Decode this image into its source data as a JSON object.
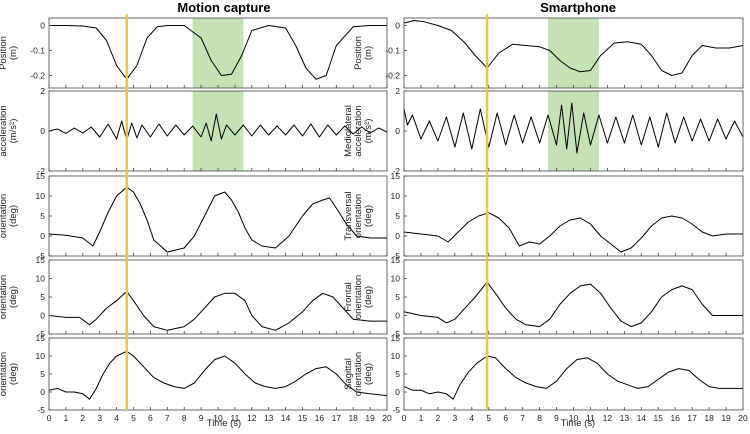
{
  "figure": {
    "titles": [
      "Motion capture",
      "Smartphone"
    ],
    "x_label": "Time (s)",
    "x_ticks": [
      0,
      1,
      2,
      3,
      4,
      5,
      6,
      7,
      8,
      9,
      10,
      11,
      12,
      13,
      14,
      15,
      16,
      17,
      18,
      19,
      20
    ],
    "marker_color": "#f7c435",
    "shade_color": "#c4e2b4",
    "rows": [
      {
        "label_lines": [
          "Position",
          "(m)"
        ],
        "ylim": [
          -0.25,
          0.03
        ],
        "yticks": [
          "0",
          "-0.1",
          "-0.2"
        ],
        "ytick_vals": [
          0,
          -0.1,
          -0.2
        ]
      },
      {
        "label_lines": [
          "Mediolateral",
          "acceleration",
          "(m/s²)"
        ],
        "ylim": [
          -2,
          2
        ],
        "yticks": [
          "2",
          "0",
          "-2"
        ],
        "ytick_vals": [
          2,
          0,
          -2
        ]
      },
      {
        "label_lines": [
          "Transversal",
          "orientation",
          "(deg)"
        ],
        "ylim": [
          -5,
          15
        ],
        "yticks": [
          "15",
          "10",
          "5",
          "0",
          "-5"
        ],
        "ytick_vals": [
          15,
          10,
          5,
          0,
          -5
        ]
      },
      {
        "label_lines": [
          "Frontal",
          "orientation",
          "(deg)"
        ],
        "ylim": [
          -5,
          15
        ],
        "yticks": [
          "15",
          "10",
          "5",
          "0",
          "-5"
        ],
        "ytick_vals": [
          15,
          10,
          5,
          0,
          -5
        ]
      },
      {
        "label_lines": [
          "Sagittal",
          "orientation",
          "(deg)"
        ],
        "ylim": [
          -5,
          15
        ],
        "yticks": [
          "15",
          "10",
          "5",
          "0",
          "-5"
        ],
        "ytick_vals": [
          15,
          10,
          5,
          0,
          -5
        ]
      }
    ]
  },
  "chart_data": [
    {
      "type": "line",
      "title": "Motion capture",
      "xlabel": "Time (s)",
      "xlim": [
        0,
        20
      ],
      "marker_x": 4.6,
      "shaded_x_range": [
        8.5,
        11.5
      ],
      "series": [
        {
          "ylabel": "Position (m)",
          "ylim": [
            -0.25,
            0.03
          ],
          "x": [
            0,
            1,
            2,
            2.8,
            3.4,
            4,
            4.6,
            5.2,
            5.8,
            6.4,
            7,
            8,
            9,
            9.6,
            10.2,
            10.8,
            11.4,
            12,
            13,
            14,
            14.6,
            15.2,
            15.8,
            16.4,
            17,
            18,
            19,
            20
          ],
          "values": [
            0,
            0,
            -0.002,
            -0.01,
            -0.06,
            -0.16,
            -0.215,
            -0.16,
            -0.05,
            -0.005,
            0,
            0,
            -0.05,
            -0.14,
            -0.2,
            -0.195,
            -0.12,
            -0.02,
            0,
            -0.01,
            -0.08,
            -0.17,
            -0.215,
            -0.2,
            -0.08,
            -0.005,
            0,
            0
          ]
        },
        {
          "ylabel": "Mediolateral acceleration (m/s²)",
          "ylim": [
            -2,
            2
          ],
          "x": [
            0,
            0.5,
            1,
            1.5,
            2,
            2.5,
            3,
            3.5,
            4,
            4.3,
            4.6,
            4.9,
            5.2,
            5.5,
            6,
            6.5,
            7,
            7.5,
            8,
            8.5,
            9,
            9.3,
            9.6,
            9.9,
            10.2,
            10.5,
            11,
            11.5,
            12,
            12.5,
            13,
            13.5,
            14,
            14.5,
            15,
            15.5,
            16,
            16.5,
            17,
            17.5,
            18,
            18.5,
            19,
            19.5,
            20
          ],
          "values": [
            0,
            0.1,
            -0.12,
            0.15,
            -0.1,
            0.2,
            -0.3,
            0.35,
            -0.4,
            0.5,
            -0.45,
            0.4,
            -0.35,
            0.3,
            -0.3,
            0.35,
            -0.25,
            0.3,
            -0.2,
            0.25,
            -0.3,
            0.4,
            -0.5,
            0.85,
            -0.4,
            0.3,
            -0.2,
            0.3,
            -0.25,
            0.3,
            -0.2,
            0.25,
            -0.2,
            0.3,
            -0.25,
            0.35,
            -0.3,
            0.3,
            -0.2,
            0.25,
            -0.15,
            0.2,
            -0.1,
            0.15,
            -0.05
          ]
        },
        {
          "ylabel": "Transversal orientation (deg)",
          "ylim": [
            -5,
            15
          ],
          "x": [
            0,
            1,
            2,
            2.6,
            3,
            3.5,
            4,
            4.6,
            5,
            5.4,
            5.8,
            6.2,
            7,
            8,
            8.6,
            9.2,
            9.8,
            10.4,
            10.8,
            11.2,
            11.6,
            12,
            12.6,
            13.4,
            14.2,
            15,
            15.6,
            16.2,
            16.6,
            17,
            17.6,
            18.2,
            19,
            20
          ],
          "values": [
            0.5,
            0.2,
            -0.5,
            -2.5,
            1,
            6,
            10,
            12.2,
            11,
            8,
            4,
            -1,
            -4,
            -3,
            0,
            5,
            10,
            11,
            9,
            6,
            2,
            -1,
            -2.5,
            -3,
            0,
            5,
            8,
            9,
            9.5,
            7,
            3,
            0,
            -0.5,
            -0.5
          ]
        },
        {
          "ylabel": "Frontal orientation (deg)",
          "ylim": [
            -5,
            15
          ],
          "x": [
            0,
            1,
            1.8,
            2.4,
            2.8,
            3.4,
            4,
            4.6,
            5,
            5.6,
            6.2,
            7,
            8,
            8.6,
            9.2,
            9.8,
            10.4,
            11,
            11.6,
            12,
            12.6,
            13.4,
            14.2,
            15,
            15.6,
            16.2,
            16.8,
            17.4,
            18,
            19,
            20
          ],
          "values": [
            0,
            -0.5,
            -0.5,
            -2.5,
            -1,
            2,
            4,
            6.5,
            4,
            0,
            -3,
            -4,
            -3,
            -1,
            2,
            5,
            6,
            6,
            4,
            0,
            -3,
            -4,
            -2,
            1,
            4,
            6,
            5,
            2,
            -1,
            -1.5,
            -1.5
          ]
        },
        {
          "ylabel": "Sagittal orientation (deg)",
          "ylim": [
            -5,
            15
          ],
          "x": [
            0,
            0.5,
            1,
            1.5,
            2,
            2.4,
            2.8,
            3.2,
            3.6,
            4,
            4.6,
            5,
            5.6,
            6.2,
            6.8,
            7.4,
            8,
            8.6,
            9.2,
            9.8,
            10.4,
            11,
            11.6,
            12.2,
            12.8,
            13.4,
            14,
            14.6,
            15.2,
            15.8,
            16.4,
            17,
            17.6,
            18.2,
            19,
            20
          ],
          "values": [
            0.5,
            1,
            0,
            0,
            -0.5,
            -2,
            1,
            5,
            8,
            10,
            11.3,
            10,
            7,
            4,
            2.5,
            1.5,
            1,
            2.5,
            6,
            9,
            10,
            8,
            5,
            2.5,
            1.5,
            1,
            1.5,
            3,
            5,
            6.5,
            7,
            5,
            2,
            0,
            -0.5,
            -1
          ]
        }
      ]
    },
    {
      "type": "line",
      "title": "Smartphone",
      "xlabel": "Time (s)",
      "xlim": [
        0,
        20
      ],
      "marker_x": 4.9,
      "shaded_x_range": [
        8.5,
        11.5
      ],
      "series": [
        {
          "ylabel": "Position (m)",
          "ylim": [
            -0.25,
            0.03
          ],
          "x": [
            0,
            0.6,
            1.2,
            2,
            2.8,
            3.6,
            4.2,
            4.9,
            5.6,
            6.4,
            7.2,
            8,
            8.6,
            9.2,
            9.8,
            10.4,
            11,
            11.6,
            12.4,
            13.2,
            14,
            14.6,
            15.2,
            15.8,
            16.4,
            17,
            17.6,
            18.4,
            19.2,
            20
          ],
          "values": [
            0.01,
            0.02,
            0.015,
            0,
            -0.02,
            -0.07,
            -0.12,
            -0.17,
            -0.11,
            -0.075,
            -0.08,
            -0.085,
            -0.1,
            -0.14,
            -0.17,
            -0.185,
            -0.18,
            -0.12,
            -0.07,
            -0.065,
            -0.075,
            -0.12,
            -0.18,
            -0.2,
            -0.19,
            -0.12,
            -0.08,
            -0.09,
            -0.09,
            -0.08
          ]
        },
        {
          "ylabel": "Mediolateral acceleration (m/s²)",
          "ylim": [
            -2,
            2
          ],
          "x": [
            0,
            0.2,
            0.5,
            1,
            1.5,
            2,
            2.5,
            3,
            3.5,
            4,
            4.5,
            5,
            5.5,
            6,
            6.5,
            7,
            7.5,
            8,
            8.5,
            9,
            9.3,
            9.6,
            9.9,
            10.2,
            10.6,
            11,
            11.5,
            12,
            12.5,
            13,
            13.5,
            14,
            14.5,
            15,
            15.5,
            16,
            16.5,
            17,
            17.5,
            18,
            18.5,
            19,
            19.5,
            20
          ],
          "values": [
            1.1,
            0.3,
            0.8,
            -0.4,
            0.5,
            -0.5,
            0.7,
            -0.8,
            0.9,
            -0.9,
            1.1,
            -0.8,
            0.9,
            -0.7,
            0.8,
            -0.6,
            0.7,
            -0.6,
            0.8,
            -0.7,
            1.3,
            -0.9,
            1.4,
            -1.1,
            0.9,
            -0.7,
            0.8,
            -0.6,
            0.7,
            -0.6,
            0.8,
            -0.7,
            0.7,
            -0.8,
            0.9,
            -0.6,
            0.7,
            -0.5,
            0.6,
            -0.5,
            0.6,
            -0.4,
            0.5,
            -0.3
          ]
        },
        {
          "ylabel": "Transversal orientation (deg)",
          "ylim": [
            -5,
            15
          ],
          "x": [
            0,
            1,
            2,
            2.6,
            3.2,
            3.8,
            4.4,
            5,
            5.6,
            6.2,
            6.8,
            7.4,
            8,
            8.6,
            9.2,
            9.8,
            10.4,
            11,
            11.6,
            12.2,
            12.8,
            13.4,
            14,
            14.6,
            15.2,
            15.8,
            16.4,
            17,
            17.6,
            18.2,
            19,
            20
          ],
          "values": [
            1,
            0.5,
            0,
            -1.5,
            1,
            3.5,
            5,
            5.8,
            4.5,
            2,
            -2.5,
            -1.5,
            -2,
            0,
            2.5,
            4,
            4.5,
            3,
            0,
            -2,
            -4,
            -3,
            -0.5,
            2.5,
            4.5,
            5,
            4.5,
            3,
            1,
            0,
            0.5,
            0.5
          ]
        },
        {
          "ylabel": "Frontal orientation (deg)",
          "ylim": [
            -5,
            15
          ],
          "x": [
            0,
            1,
            2,
            2.5,
            3,
            3.6,
            4.2,
            4.9,
            5.4,
            6,
            6.6,
            7.2,
            8,
            8.6,
            9.2,
            9.8,
            10.4,
            11,
            11.6,
            12.2,
            12.8,
            13.4,
            14,
            14.6,
            15.2,
            15.8,
            16.4,
            17,
            17.6,
            18.2,
            19,
            20
          ],
          "values": [
            1,
            0,
            -0.5,
            -2,
            -1,
            2,
            5,
            9,
            6,
            2,
            -1,
            -2.5,
            -3,
            -1,
            3,
            6,
            8,
            8.5,
            6,
            2,
            -1.5,
            -3,
            -2,
            1,
            5,
            7,
            8,
            7,
            3,
            0,
            0,
            0
          ]
        },
        {
          "ylabel": "Sagittal orientation (deg)",
          "ylim": [
            -5,
            15
          ],
          "x": [
            0,
            0.5,
            1,
            1.5,
            2,
            2.5,
            2.9,
            3.3,
            3.8,
            4.3,
            4.9,
            5.4,
            6,
            6.6,
            7.2,
            7.8,
            8.4,
            9,
            9.6,
            10.2,
            10.8,
            11.4,
            12,
            12.6,
            13.2,
            13.8,
            14.4,
            15,
            15.6,
            16.2,
            16.8,
            17.4,
            18,
            18.6,
            19.2,
            20
          ],
          "values": [
            1.5,
            0.5,
            0.5,
            -0.5,
            0,
            -0.5,
            -2,
            2,
            5.5,
            8,
            10,
            9.5,
            6.5,
            4,
            2.5,
            1.5,
            1,
            3,
            6.5,
            9,
            9.5,
            8,
            5,
            3,
            2,
            1,
            1.5,
            3.5,
            5.5,
            6.5,
            6,
            3.5,
            1.5,
            1,
            1,
            1
          ]
        }
      ]
    }
  ]
}
